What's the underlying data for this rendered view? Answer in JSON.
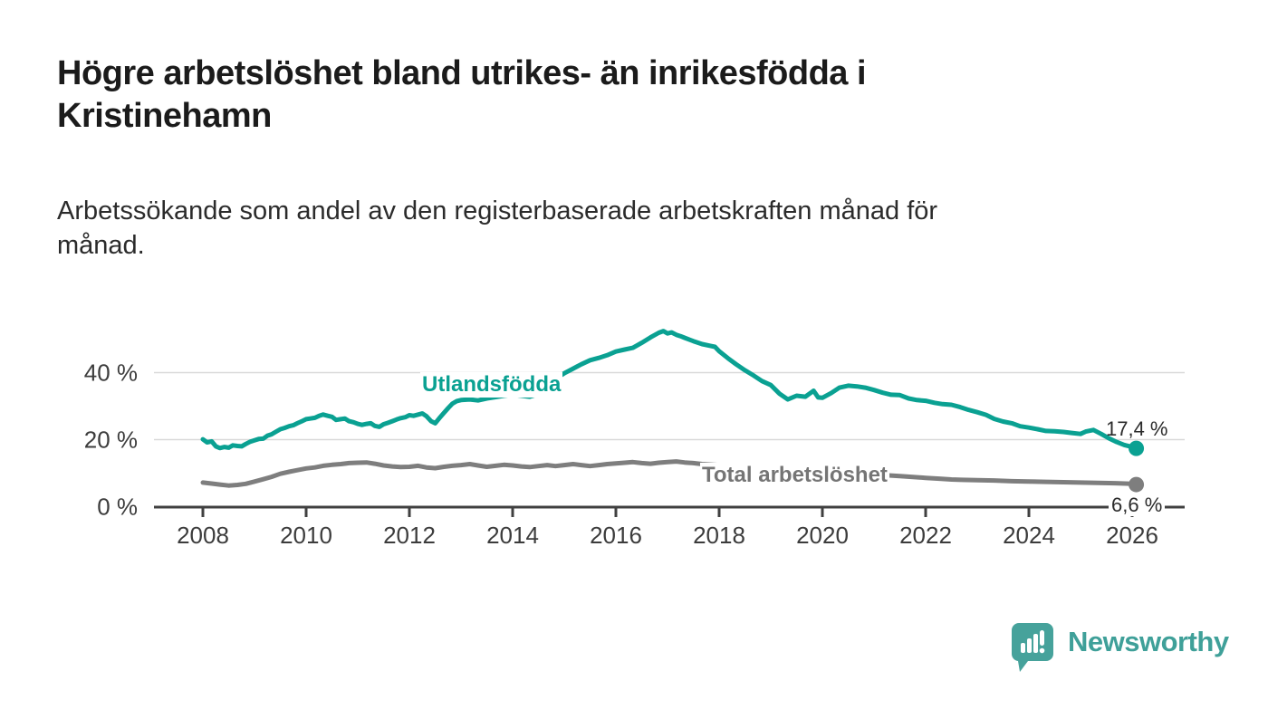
{
  "header": {
    "title": "Högre arbetslöshet bland utrikes- än inrikesfödda i\nKristinehamn",
    "subtitle": "Arbetssökande som andel av den registerbaserade arbetskraften månad för\nmånad."
  },
  "chart_data": {
    "type": "line",
    "title": "Högre arbetslöshet bland utrikes- än inrikesfödda i Kristinehamn",
    "subtitle": "Arbetssökande som andel av den registerbaserade arbetskraften månad för månad.",
    "grid": true,
    "legend_position": "inline-labels",
    "xlabel": "",
    "ylabel": "",
    "x_domain": [
      2007.05,
      2027.0
    ],
    "y_domain": [
      0,
      54
    ],
    "y_ticks": [
      {
        "value": 0,
        "label": "0 %"
      },
      {
        "value": 20,
        "label": "20 %"
      },
      {
        "value": 40,
        "label": "40 %"
      }
    ],
    "x_ticks": [
      {
        "value": 2008,
        "label": "2008"
      },
      {
        "value": 2010,
        "label": "2010"
      },
      {
        "value": 2012,
        "label": "2012"
      },
      {
        "value": 2014,
        "label": "2014"
      },
      {
        "value": 2016,
        "label": "2016"
      },
      {
        "value": 2018,
        "label": "2018"
      },
      {
        "value": 2020,
        "label": "2020"
      },
      {
        "value": 2022,
        "label": "2022"
      },
      {
        "value": 2024,
        "label": "2024"
      },
      {
        "value": 2026,
        "label": "2026"
      }
    ],
    "series": [
      {
        "name": "Utlandsfödda",
        "color": "#0aa192",
        "end_label": "17,4 %",
        "end_value": 17.4,
        "points": [
          [
            2008.0,
            20.1
          ],
          [
            2008.08,
            19.2
          ],
          [
            2008.17,
            19.5
          ],
          [
            2008.25,
            18.0
          ],
          [
            2008.33,
            17.5
          ],
          [
            2008.42,
            17.8
          ],
          [
            2008.5,
            17.6
          ],
          [
            2008.58,
            18.3
          ],
          [
            2008.67,
            18.1
          ],
          [
            2008.75,
            18.0
          ],
          [
            2008.83,
            18.7
          ],
          [
            2008.92,
            19.4
          ],
          [
            2009.0,
            19.8
          ],
          [
            2009.08,
            20.2
          ],
          [
            2009.17,
            20.3
          ],
          [
            2009.25,
            21.2
          ],
          [
            2009.33,
            21.6
          ],
          [
            2009.42,
            22.4
          ],
          [
            2009.5,
            23.1
          ],
          [
            2009.58,
            23.5
          ],
          [
            2009.67,
            24.0
          ],
          [
            2009.75,
            24.3
          ],
          [
            2009.83,
            24.9
          ],
          [
            2009.92,
            25.5
          ],
          [
            2010.0,
            26.1
          ],
          [
            2010.08,
            26.3
          ],
          [
            2010.17,
            26.5
          ],
          [
            2010.25,
            27.1
          ],
          [
            2010.33,
            27.5
          ],
          [
            2010.42,
            27.1
          ],
          [
            2010.5,
            26.8
          ],
          [
            2010.58,
            25.9
          ],
          [
            2010.67,
            26.1
          ],
          [
            2010.75,
            26.3
          ],
          [
            2010.83,
            25.5
          ],
          [
            2010.92,
            25.2
          ],
          [
            2011.0,
            24.7
          ],
          [
            2011.08,
            24.4
          ],
          [
            2011.17,
            24.7
          ],
          [
            2011.25,
            24.9
          ],
          [
            2011.33,
            24.1
          ],
          [
            2011.42,
            23.8
          ],
          [
            2011.5,
            24.6
          ],
          [
            2011.58,
            25.0
          ],
          [
            2011.67,
            25.5
          ],
          [
            2011.75,
            26.0
          ],
          [
            2011.83,
            26.4
          ],
          [
            2011.92,
            26.7
          ],
          [
            2012.0,
            27.3
          ],
          [
            2012.08,
            27.1
          ],
          [
            2012.17,
            27.5
          ],
          [
            2012.25,
            27.8
          ],
          [
            2012.33,
            27.0
          ],
          [
            2012.42,
            25.5
          ],
          [
            2012.5,
            24.9
          ],
          [
            2012.58,
            26.4
          ],
          [
            2012.67,
            28.0
          ],
          [
            2012.75,
            29.4
          ],
          [
            2012.83,
            30.7
          ],
          [
            2012.92,
            31.5
          ],
          [
            2013.0,
            31.8
          ],
          [
            2013.17,
            32.0
          ],
          [
            2013.33,
            31.7
          ],
          [
            2013.5,
            32.3
          ],
          [
            2013.67,
            32.7
          ],
          [
            2013.83,
            33.1
          ],
          [
            2014.0,
            33.4
          ],
          [
            2014.17,
            33.1
          ],
          [
            2014.33,
            32.8
          ],
          [
            2014.5,
            33.6
          ],
          [
            2014.67,
            35.6
          ],
          [
            2014.83,
            38.2
          ],
          [
            2015.0,
            39.8
          ],
          [
            2015.17,
            41.2
          ],
          [
            2015.33,
            42.5
          ],
          [
            2015.5,
            43.7
          ],
          [
            2015.67,
            44.4
          ],
          [
            2015.83,
            45.2
          ],
          [
            2016.0,
            46.3
          ],
          [
            2016.17,
            46.9
          ],
          [
            2016.33,
            47.4
          ],
          [
            2016.5,
            48.9
          ],
          [
            2016.67,
            50.5
          ],
          [
            2016.83,
            51.9
          ],
          [
            2016.92,
            52.4
          ],
          [
            2017.0,
            51.7
          ],
          [
            2017.08,
            52.0
          ],
          [
            2017.17,
            51.3
          ],
          [
            2017.25,
            50.9
          ],
          [
            2017.33,
            50.4
          ],
          [
            2017.5,
            49.4
          ],
          [
            2017.67,
            48.5
          ],
          [
            2017.83,
            48.0
          ],
          [
            2017.92,
            47.7
          ],
          [
            2018.0,
            46.4
          ],
          [
            2018.17,
            44.3
          ],
          [
            2018.33,
            42.5
          ],
          [
            2018.5,
            40.7
          ],
          [
            2018.67,
            39.1
          ],
          [
            2018.83,
            37.5
          ],
          [
            2019.0,
            36.3
          ],
          [
            2019.17,
            33.7
          ],
          [
            2019.33,
            32.0
          ],
          [
            2019.5,
            33.1
          ],
          [
            2019.67,
            32.8
          ],
          [
            2019.83,
            34.6
          ],
          [
            2019.92,
            32.6
          ],
          [
            2020.0,
            32.5
          ],
          [
            2020.17,
            33.9
          ],
          [
            2020.33,
            35.5
          ],
          [
            2020.5,
            36.1
          ],
          [
            2020.67,
            35.9
          ],
          [
            2020.83,
            35.5
          ],
          [
            2021.0,
            34.8
          ],
          [
            2021.17,
            34.0
          ],
          [
            2021.33,
            33.4
          ],
          [
            2021.5,
            33.3
          ],
          [
            2021.67,
            32.3
          ],
          [
            2021.83,
            31.8
          ],
          [
            2022.0,
            31.6
          ],
          [
            2022.17,
            31.0
          ],
          [
            2022.33,
            30.6
          ],
          [
            2022.5,
            30.4
          ],
          [
            2022.67,
            29.7
          ],
          [
            2022.83,
            28.9
          ],
          [
            2023.0,
            28.2
          ],
          [
            2023.17,
            27.4
          ],
          [
            2023.33,
            26.2
          ],
          [
            2023.5,
            25.4
          ],
          [
            2023.67,
            24.9
          ],
          [
            2023.83,
            24.0
          ],
          [
            2024.0,
            23.6
          ],
          [
            2024.17,
            23.1
          ],
          [
            2024.33,
            22.6
          ],
          [
            2024.5,
            22.5
          ],
          [
            2024.67,
            22.3
          ],
          [
            2024.83,
            22.0
          ],
          [
            2025.0,
            21.7
          ],
          [
            2025.1,
            22.4
          ],
          [
            2025.25,
            22.9
          ],
          [
            2025.4,
            21.7
          ],
          [
            2025.55,
            20.4
          ],
          [
            2025.7,
            19.3
          ],
          [
            2025.85,
            18.4
          ],
          [
            2026.0,
            17.8
          ],
          [
            2026.08,
            17.4
          ]
        ]
      },
      {
        "name": "Total arbetslöshet",
        "color": "#7e7e7e",
        "end_label": "6,6 %",
        "end_value": 6.6,
        "points": [
          [
            2008.0,
            7.2
          ],
          [
            2008.17,
            6.9
          ],
          [
            2008.33,
            6.6
          ],
          [
            2008.5,
            6.3
          ],
          [
            2008.67,
            6.5
          ],
          [
            2008.83,
            6.8
          ],
          [
            2009.0,
            7.5
          ],
          [
            2009.17,
            8.2
          ],
          [
            2009.33,
            8.9
          ],
          [
            2009.5,
            9.8
          ],
          [
            2009.67,
            10.4
          ],
          [
            2009.83,
            10.9
          ],
          [
            2010.0,
            11.4
          ],
          [
            2010.17,
            11.7
          ],
          [
            2010.33,
            12.2
          ],
          [
            2010.5,
            12.5
          ],
          [
            2010.67,
            12.7
          ],
          [
            2010.83,
            13.0
          ],
          [
            2011.0,
            13.1
          ],
          [
            2011.17,
            13.2
          ],
          [
            2011.33,
            12.8
          ],
          [
            2011.5,
            12.3
          ],
          [
            2011.67,
            12.0
          ],
          [
            2011.83,
            11.8
          ],
          [
            2012.0,
            11.9
          ],
          [
            2012.17,
            12.2
          ],
          [
            2012.33,
            11.7
          ],
          [
            2012.5,
            11.5
          ],
          [
            2012.67,
            11.9
          ],
          [
            2012.83,
            12.2
          ],
          [
            2013.0,
            12.4
          ],
          [
            2013.17,
            12.7
          ],
          [
            2013.33,
            12.3
          ],
          [
            2013.5,
            11.9
          ],
          [
            2013.67,
            12.2
          ],
          [
            2013.83,
            12.5
          ],
          [
            2014.0,
            12.3
          ],
          [
            2014.17,
            12.0
          ],
          [
            2014.33,
            11.8
          ],
          [
            2014.5,
            12.1
          ],
          [
            2014.67,
            12.4
          ],
          [
            2014.83,
            12.1
          ],
          [
            2015.0,
            12.4
          ],
          [
            2015.17,
            12.7
          ],
          [
            2015.33,
            12.4
          ],
          [
            2015.5,
            12.1
          ],
          [
            2015.67,
            12.4
          ],
          [
            2015.83,
            12.7
          ],
          [
            2016.0,
            12.9
          ],
          [
            2016.17,
            13.1
          ],
          [
            2016.33,
            13.3
          ],
          [
            2016.5,
            13.0
          ],
          [
            2016.67,
            12.8
          ],
          [
            2016.83,
            13.1
          ],
          [
            2017.0,
            13.3
          ],
          [
            2017.17,
            13.5
          ],
          [
            2017.33,
            13.2
          ],
          [
            2017.5,
            13.0
          ],
          [
            2017.67,
            12.7
          ],
          [
            2018.0,
            12.4
          ],
          [
            2018.5,
            11.7
          ],
          [
            2019.0,
            11.1
          ],
          [
            2019.5,
            10.5
          ],
          [
            2020.0,
            10.1
          ],
          [
            2020.4,
            10.3
          ],
          [
            2021.0,
            9.6
          ],
          [
            2021.5,
            9.1
          ],
          [
            2022.0,
            8.6
          ],
          [
            2022.3,
            8.3
          ],
          [
            2022.5,
            8.1
          ],
          [
            2022.7,
            8.0
          ],
          [
            2023.0,
            7.9
          ],
          [
            2023.33,
            7.8
          ],
          [
            2023.67,
            7.6
          ],
          [
            2024.0,
            7.5
          ],
          [
            2024.33,
            7.4
          ],
          [
            2024.67,
            7.3
          ],
          [
            2025.0,
            7.2
          ],
          [
            2025.33,
            7.1
          ],
          [
            2025.67,
            7.0
          ],
          [
            2026.0,
            6.8
          ],
          [
            2026.08,
            6.6
          ]
        ]
      }
    ]
  },
  "style": {
    "gridline_color": "#d9d9d9",
    "axis_color": "#404040",
    "axis_text_color": "#3c3c3c",
    "background": "#ffffff"
  },
  "branding": {
    "logo_text": "Newsworthy",
    "logo_color": "#3fa099",
    "logo_bubble_color": "#46a29b",
    "logo_icon": "speech-bubble-bar-chart-icon"
  }
}
